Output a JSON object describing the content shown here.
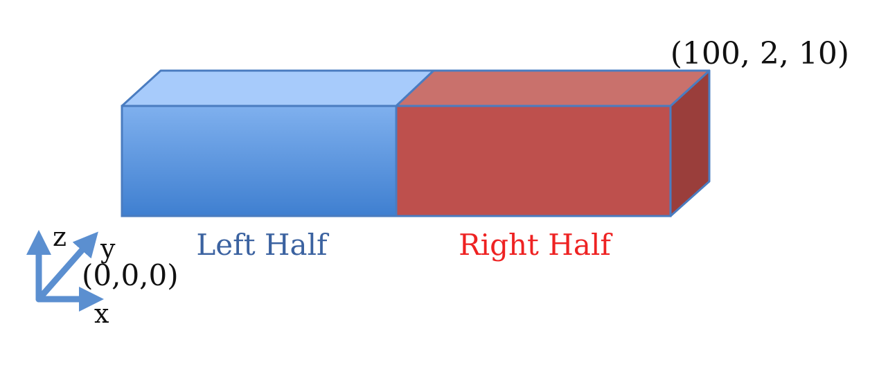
{
  "labels": {
    "far_corner": "(100, 2, 10)",
    "origin": "(0,0,0)",
    "left_half": "Left Half",
    "right_half": "Right Half"
  },
  "axes": {
    "x": "x",
    "y": "y",
    "z": "z"
  },
  "colors": {
    "left_front_top": "#7fb0ee",
    "left_front_bottom": "#3f7fd0",
    "left_top": "#a7cbfb",
    "right_front": "#be504d",
    "right_top": "#c9716c",
    "right_side": "#9a3e3b",
    "outline": "#4a7cc0",
    "axis_arrow": "#5b8fd0",
    "left_label": "#3b62a0",
    "right_label": "#ee2222",
    "coord_text": "#111111"
  }
}
